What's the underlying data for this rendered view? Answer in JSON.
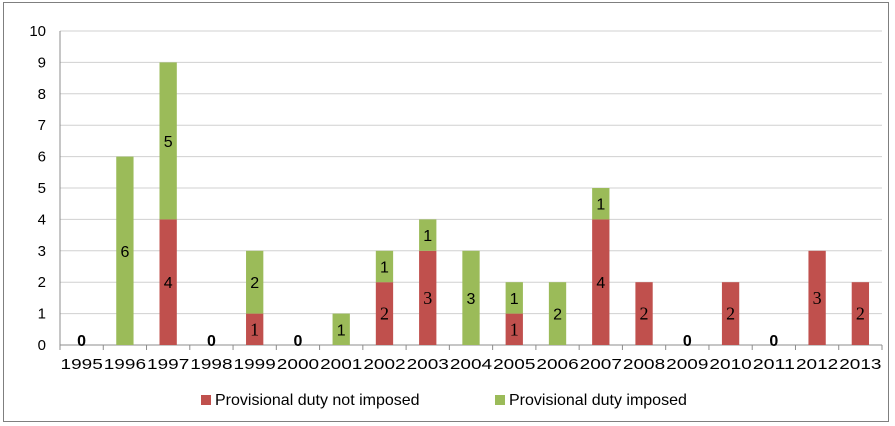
{
  "chart_data": {
    "type": "bar",
    "stacked": true,
    "categories": [
      "1995",
      "1996",
      "1997",
      "1998",
      "1999",
      "2000",
      "2001",
      "2002",
      "2003",
      "2004",
      "2005",
      "2006",
      "2007",
      "2008",
      "2009",
      "2010",
      "2011",
      "2012",
      "2013"
    ],
    "series": [
      {
        "name": "Provisional duty not imposed",
        "color": "#c0504d",
        "values": [
          0,
          0,
          4,
          0,
          1,
          0,
          0,
          2,
          3,
          0,
          1,
          0,
          4,
          2,
          0,
          2,
          0,
          3,
          2
        ]
      },
      {
        "name": "Provisional duty imposed",
        "color": "#9bbb59",
        "values": [
          0,
          6,
          5,
          0,
          2,
          0,
          1,
          1,
          1,
          3,
          1,
          2,
          1,
          0,
          0,
          0,
          0,
          0,
          0
        ]
      }
    ],
    "zero_labels": [
      "1995",
      "1998",
      "2000",
      "2009",
      "2011"
    ],
    "ylim": [
      0,
      10
    ],
    "yticks": [
      0,
      1,
      2,
      3,
      4,
      5,
      6,
      7,
      8,
      9,
      10
    ],
    "gridlines": true,
    "legend_position": "bottom"
  }
}
